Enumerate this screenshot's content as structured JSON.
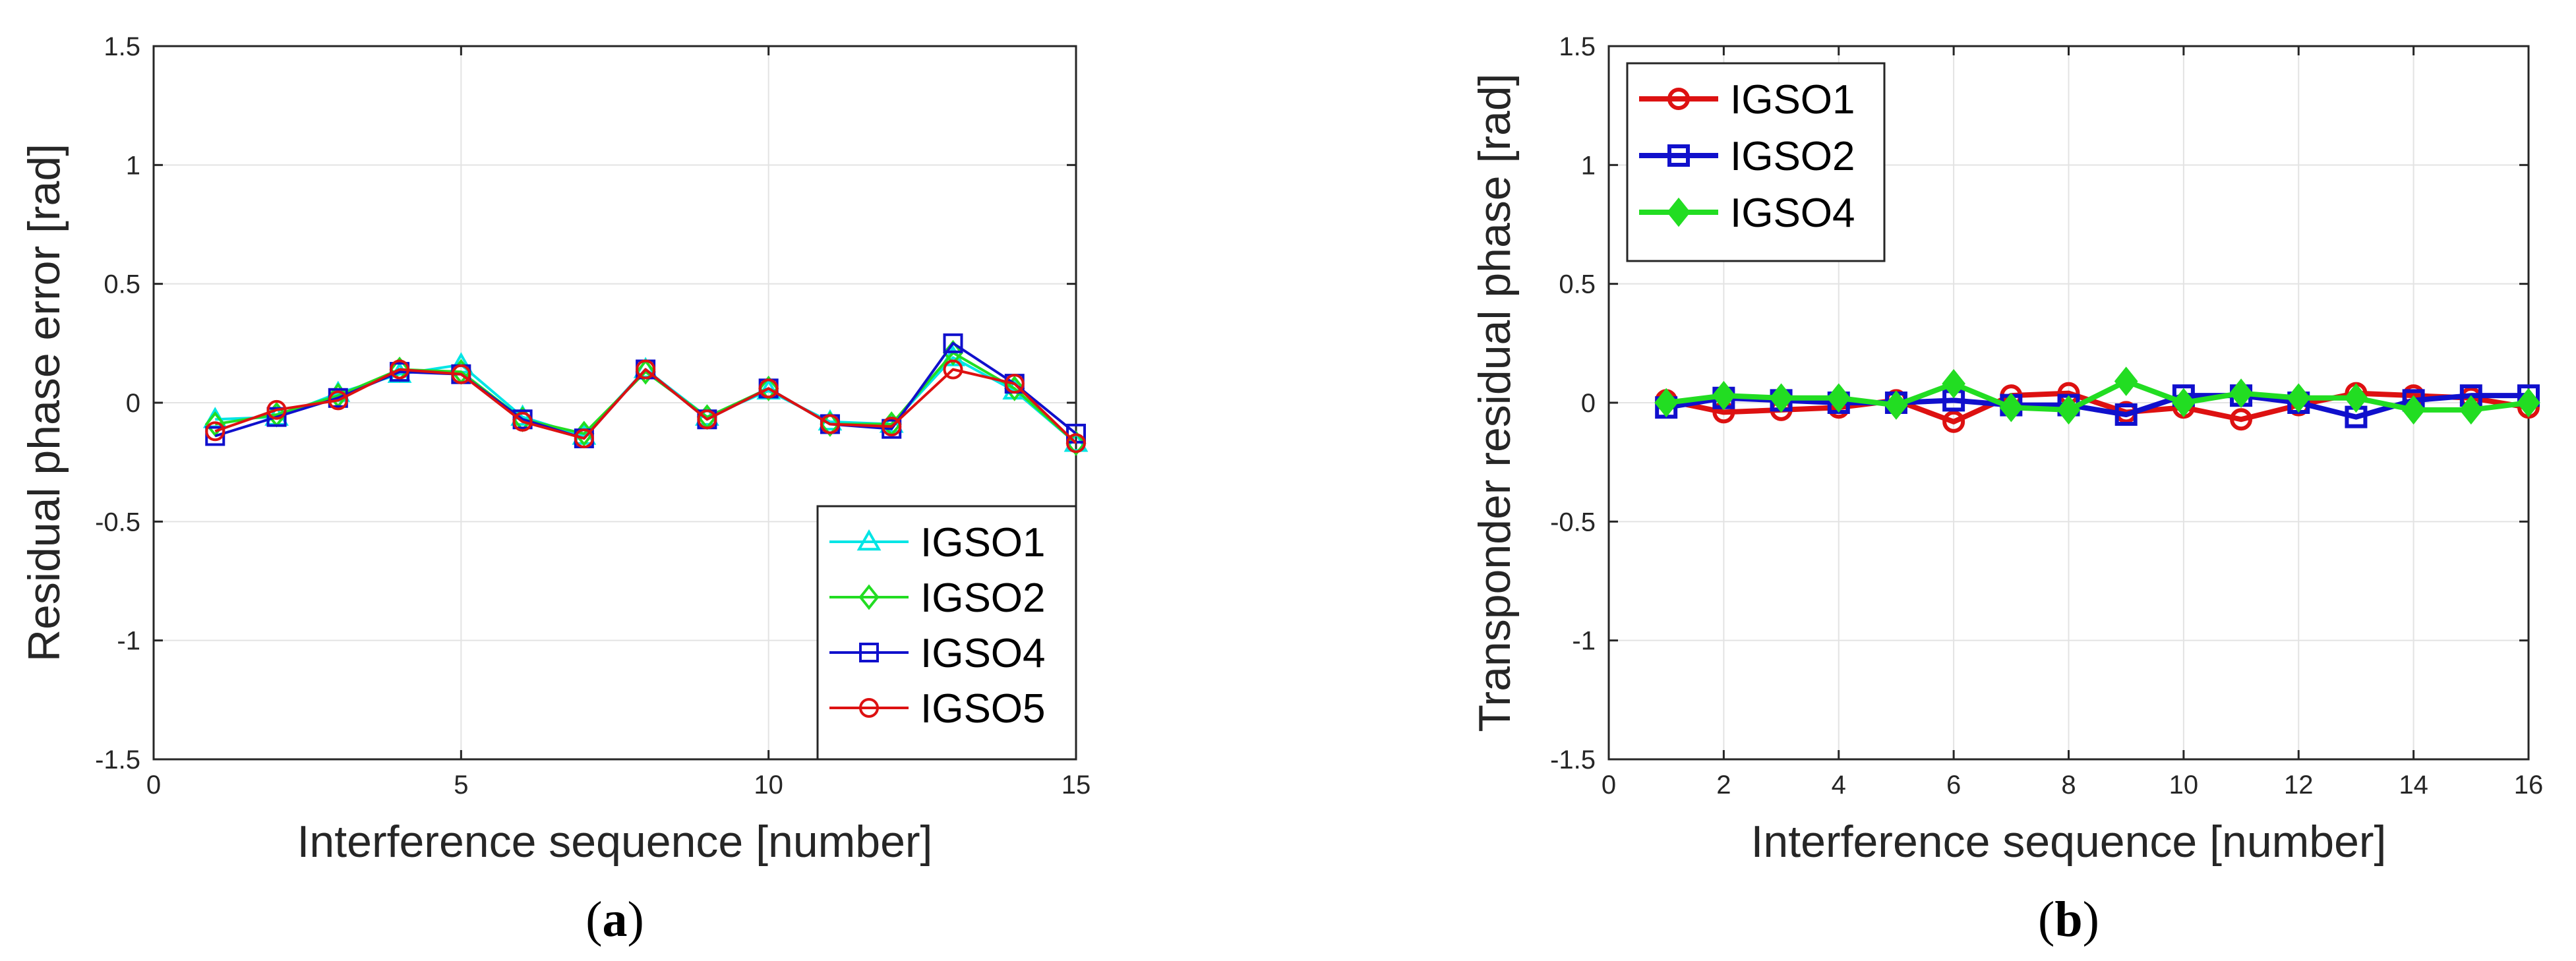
{
  "chart_data": [
    {
      "type": "line",
      "ylabel": "Residual phase error [rad]",
      "xlabel": "Interference sequence [number]",
      "caption": {
        "prefix": "(",
        "letter": "a",
        "suffix": ")"
      },
      "xlim": [
        0,
        15
      ],
      "ylim": [
        -1.5,
        1.5
      ],
      "xticks": [
        0,
        5,
        10,
        15
      ],
      "yticks": [
        -1.5,
        -1,
        -0.5,
        0,
        0.5,
        1,
        1.5
      ],
      "ytick_labels": [
        "-1.5",
        "-1",
        "-0.5",
        "0",
        "0.5",
        "1",
        "1.5"
      ],
      "grid": true,
      "legend_position": "bottom-right",
      "x": [
        1,
        2,
        3,
        4,
        5,
        6,
        7,
        8,
        9,
        10,
        11,
        12,
        13,
        14,
        15
      ],
      "series": [
        {
          "name": "IGSO1",
          "color": "#00e5e5",
          "marker": "triangle",
          "values": [
            -0.07,
            -0.06,
            0.04,
            0.12,
            0.16,
            -0.06,
            -0.14,
            0.14,
            -0.06,
            0.05,
            -0.08,
            -0.09,
            0.19,
            0.05,
            -0.17
          ]
        },
        {
          "name": "IGSO2",
          "color": "#22dd22",
          "marker": "diamond",
          "values": [
            -0.09,
            -0.05,
            0.03,
            0.14,
            0.13,
            -0.07,
            -0.13,
            0.13,
            -0.06,
            0.06,
            -0.09,
            -0.09,
            0.21,
            0.06,
            -0.17
          ]
        },
        {
          "name": "IGSO4",
          "color": "#1010cc",
          "marker": "square",
          "values": [
            -0.14,
            -0.06,
            0.02,
            0.13,
            0.12,
            -0.07,
            -0.15,
            0.14,
            -0.07,
            0.06,
            -0.09,
            -0.11,
            0.25,
            0.08,
            -0.13
          ]
        },
        {
          "name": "IGSO5",
          "color": "#dd1111",
          "marker": "circle",
          "values": [
            -0.12,
            -0.03,
            0.01,
            0.14,
            0.12,
            -0.08,
            -0.15,
            0.14,
            -0.07,
            0.06,
            -0.09,
            -0.1,
            0.14,
            0.08,
            -0.17
          ]
        }
      ]
    },
    {
      "type": "line",
      "ylabel": "Transponder residual phase [rad]",
      "xlabel": "Interference sequence [number]",
      "caption": {
        "prefix": "(",
        "letter": "b",
        "suffix": ")"
      },
      "xlim": [
        0,
        16
      ],
      "ylim": [
        -1.5,
        1.5
      ],
      "xticks": [
        0,
        2,
        4,
        6,
        8,
        10,
        12,
        14,
        16
      ],
      "yticks": [
        -1.5,
        -1,
        -0.5,
        0,
        0.5,
        1,
        1.5
      ],
      "ytick_labels": [
        "-1.5",
        "-1",
        "-0.5",
        "0",
        "0.5",
        "1",
        "1.5"
      ],
      "grid": true,
      "legend_position": "top-left",
      "x": [
        1,
        2,
        3,
        4,
        5,
        6,
        7,
        8,
        9,
        10,
        11,
        12,
        13,
        14,
        15,
        16
      ],
      "series": [
        {
          "name": "IGSO1",
          "color": "#dd1111",
          "marker": "circle",
          "values": [
            0.01,
            -0.04,
            -0.03,
            -0.02,
            0.01,
            -0.08,
            0.03,
            0.04,
            -0.04,
            -0.02,
            -0.07,
            -0.01,
            0.04,
            0.03,
            0.02,
            -0.02
          ]
        },
        {
          "name": "IGSO2",
          "color": "#1010cc",
          "marker": "square",
          "values": [
            -0.02,
            0.02,
            0.01,
            0.0,
            0.0,
            0.01,
            -0.01,
            -0.01,
            -0.05,
            0.03,
            0.03,
            0.0,
            -0.06,
            0.01,
            0.03,
            0.03
          ]
        },
        {
          "name": "IGSO4",
          "color": "#22dd22",
          "marker": "diamond",
          "values": [
            0.0,
            0.03,
            0.02,
            0.02,
            -0.01,
            0.08,
            -0.02,
            -0.03,
            0.09,
            0.0,
            0.04,
            0.02,
            0.02,
            -0.03,
            -0.03,
            0.0
          ]
        }
      ]
    }
  ]
}
